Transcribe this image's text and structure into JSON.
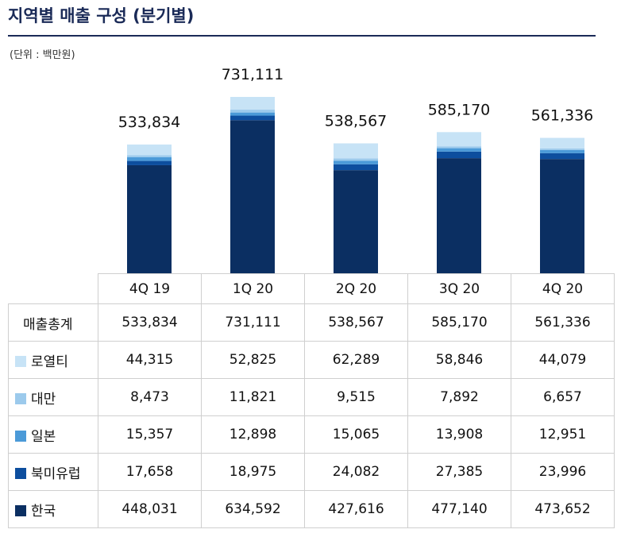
{
  "title": "지역별 매출 구성 (분기별)",
  "unit_note": "(단위 : 백만원)",
  "chart_data": {
    "type": "bar",
    "stacked": true,
    "categories": [
      "4Q 19",
      "1Q 20",
      "2Q 20",
      "3Q 20",
      "4Q 20"
    ],
    "totals_label": "매출총계",
    "totals": [
      533834,
      731111,
      538567,
      585170,
      561336
    ],
    "totals_display": [
      "533,834",
      "731,111",
      "538,567",
      "585,170",
      "561,336"
    ],
    "series": [
      {
        "name": "한국",
        "color": "#0b2f62",
        "values": [
          448031,
          634592,
          427616,
          477140,
          473652
        ],
        "display": [
          "448,031",
          "634,592",
          "427,616",
          "477,140",
          "473,652"
        ]
      },
      {
        "name": "북미유럽",
        "color": "#0d4e9e",
        "values": [
          17658,
          18975,
          24082,
          27385,
          23996
        ],
        "display": [
          "17,658",
          "18,975",
          "24,082",
          "27,385",
          "23,996"
        ]
      },
      {
        "name": "일본",
        "color": "#4b9ad8",
        "values": [
          15357,
          12898,
          15065,
          13908,
          12951
        ],
        "display": [
          "15,357",
          "12,898",
          "15,065",
          "13,908",
          "12,951"
        ]
      },
      {
        "name": "대만",
        "color": "#9ccaec",
        "values": [
          8473,
          11821,
          9515,
          7892,
          6657
        ],
        "display": [
          "8,473",
          "11,821",
          "9,515",
          "7,892",
          "6,657"
        ]
      },
      {
        "name": "로열티",
        "color": "#c7e3f6",
        "values": [
          44315,
          52825,
          62289,
          58846,
          44079
        ],
        "display": [
          "44,315",
          "52,825",
          "62,289",
          "58,846",
          "44,079"
        ]
      }
    ],
    "table_row_order": [
      "로열티",
      "대만",
      "일본",
      "북미유럽",
      "한국"
    ]
  }
}
